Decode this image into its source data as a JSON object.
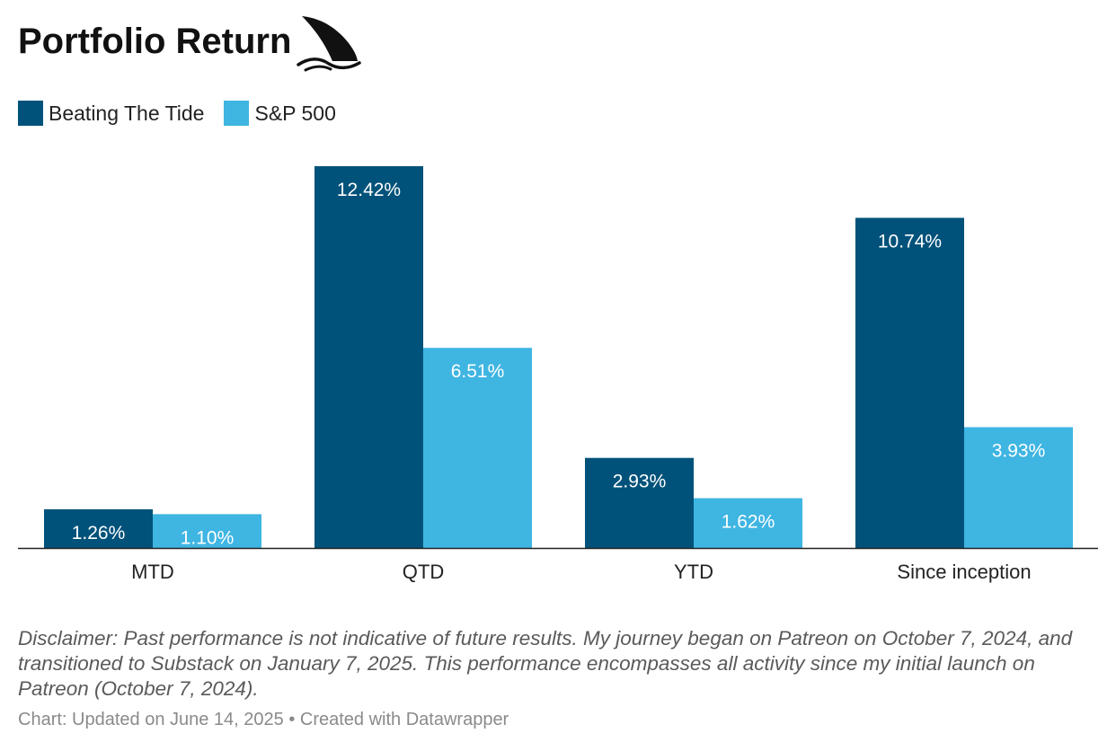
{
  "title": "Portfolio Return",
  "logo": {
    "icon": "shark-fin-icon"
  },
  "legend": [
    {
      "label": "Beating The Tide",
      "color": "#00527a"
    },
    {
      "label": "S&P 500",
      "color": "#3fb5e2"
    }
  ],
  "chart_data": {
    "type": "bar",
    "categories": [
      "MTD",
      "QTD",
      "YTD",
      "Since inception"
    ],
    "series": [
      {
        "name": "Beating The Tide",
        "values": [
          1.26,
          12.42,
          2.93,
          10.74
        ],
        "labels": [
          "1.26%",
          "12.42%",
          "2.93%",
          "10.74%"
        ],
        "color": "#00527a"
      },
      {
        "name": "S&P 500",
        "values": [
          1.1,
          6.51,
          1.62,
          3.93
        ],
        "labels": [
          "1.10%",
          "6.51%",
          "1.62%",
          "3.93%"
        ],
        "color": "#3fb5e2"
      }
    ],
    "ylim": [
      0,
      12.42
    ],
    "grid": false,
    "legend_position": "top-left"
  },
  "disclaimer": "Disclaimer: Past performance is not indicative of future results. My journey began on Patreon on October 7, 2024, and transitioned to Substack on January 7, 2025. This performance encompasses all activity since my initial launch on Patreon (October 7, 2024).",
  "credit": "Chart: Updated on June 14, 2025 • Created with Datawrapper"
}
